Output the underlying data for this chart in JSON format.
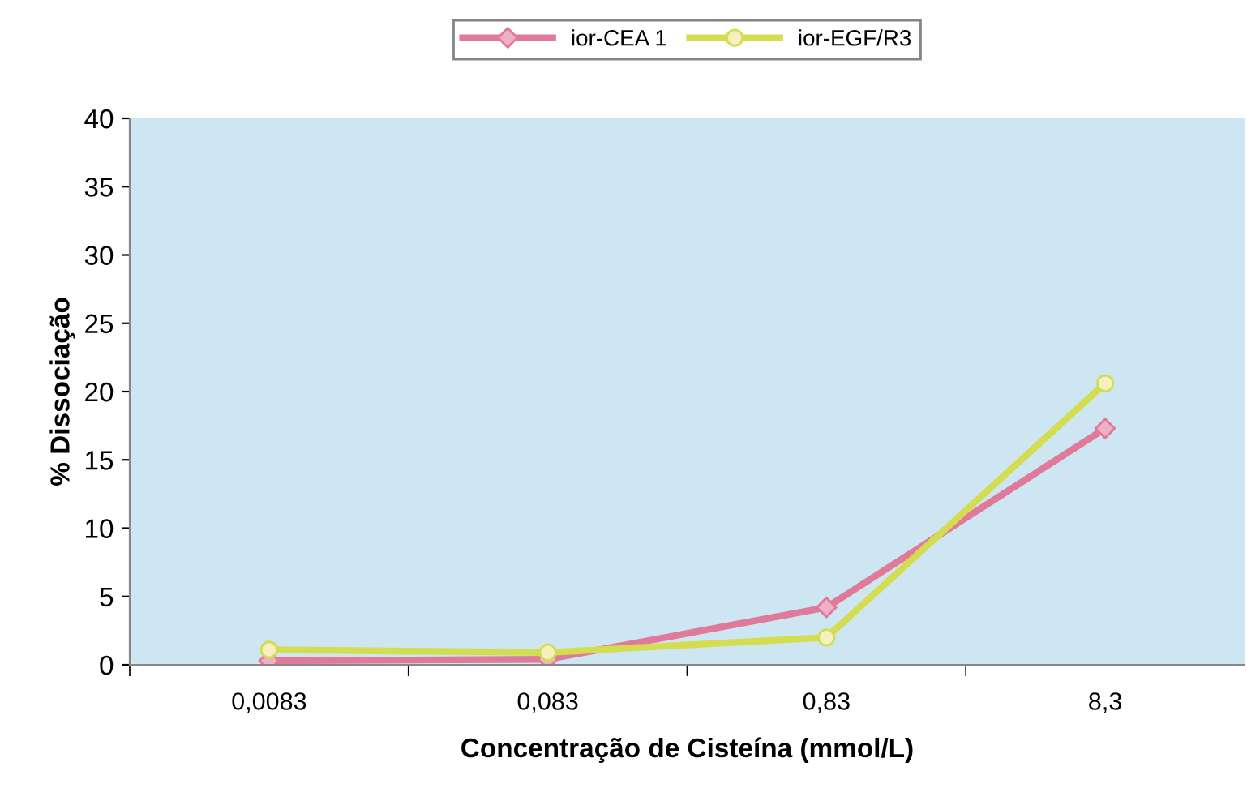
{
  "chart_data": {
    "type": "line",
    "xlabel": "Concentração de Cisteína (mmol/L)",
    "ylabel": "% Dissociação",
    "categories": [
      "0,0083",
      "0,083",
      "0,83",
      "8,3"
    ],
    "series": [
      {
        "name": "ior-CEA 1",
        "color": "#e07a9a",
        "marker": "diamond",
        "values": [
          0.3,
          0.4,
          4.2,
          17.3
        ]
      },
      {
        "name": "ior-EGF/R3",
        "color": "#d4dc50",
        "marker": "circle",
        "values": [
          1.1,
          0.9,
          2.0,
          20.6
        ]
      }
    ],
    "ylim": [
      0,
      40
    ],
    "yticks": [
      0,
      5,
      10,
      15,
      20,
      25,
      30,
      35,
      40
    ],
    "grid": false,
    "legend": "top",
    "line_style": "solid"
  }
}
